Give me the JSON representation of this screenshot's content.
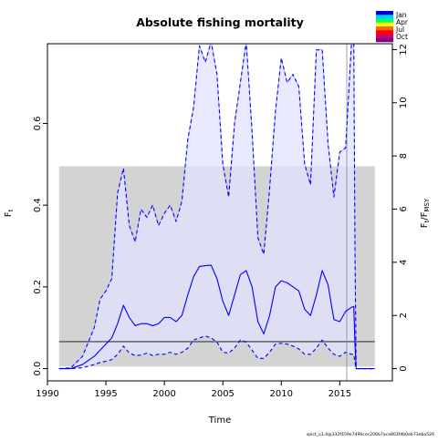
{
  "chart_data": {
    "type": "line",
    "title": "Absolute fishing mortality",
    "xlabel": "Time",
    "ylabel": "F",
    "ylabel_sub": "t",
    "ylabel_right": "F",
    "ylabel_right_sub": "t",
    "ylabel_right_den": "F",
    "ylabel_right_den_sub": "MSY",
    "xlim": [
      1990,
      2019.5
    ],
    "ylim": [
      -0.03,
      0.795
    ],
    "ylim_right": [
      -0.46,
      12.22
    ],
    "xticks": [
      1990,
      1995,
      2000,
      2005,
      2010,
      2015
    ],
    "yticks": [
      0.0,
      0.2,
      0.4,
      0.6
    ],
    "yticks_right": [
      0,
      2,
      4,
      6,
      8,
      10,
      12
    ],
    "footnote": "spict_v1.4@332f459e7d96cec206b7aca803fdb0eb73eba526",
    "legend": {
      "position": "top-right",
      "entries": [
        "Jan",
        "Apr",
        "Jul",
        "Oct"
      ],
      "gradient": [
        "#0000cc",
        "#00ccff",
        "#00ff66",
        "#ffff00",
        "#ff6600",
        "#ff0000",
        "#cc0066",
        "#800080"
      ]
    },
    "colors": {
      "band_fill": "#d3d3d3",
      "ci_fill": "#e2e2ff",
      "ci_outline": "#a8a8ff",
      "line": "#0000ff",
      "fmsy_line": "#555555",
      "vline": "#888888"
    },
    "fmsy_band": {
      "x": [
        1991,
        2018
      ],
      "y": [
        0.005,
        0.495
      ]
    },
    "fmsy_level": {
      "x": [
        1991,
        2018
      ],
      "y": 0.066
    },
    "vline_x": 2015.6,
    "series": [
      {
        "role": "estimate",
        "x": [
          1991,
          1992,
          1993,
          1994,
          1994.5,
          1995,
          1995.5,
          1996,
          1996.5,
          1997,
          1997.5,
          1998,
          1998.5,
          1999,
          1999.5,
          2000,
          2000.5,
          2001,
          2001.5,
          2002,
          2002.5,
          2003,
          2003.5,
          2004,
          2004.5,
          2005,
          2005.5,
          2006,
          2006.5,
          2007,
          2007.5,
          2008,
          2008.5,
          2009,
          2009.5,
          2010,
          2010.5,
          2011,
          2011.5,
          2012,
          2012.5,
          2013,
          2013.5,
          2014,
          2014.5,
          2015,
          2015.5,
          2016,
          2016.2,
          2016.3,
          2016.4,
          2017,
          2018
        ],
        "y": [
          0.0,
          0.0,
          0.01,
          0.03,
          0.045,
          0.06,
          0.075,
          0.11,
          0.155,
          0.125,
          0.105,
          0.11,
          0.11,
          0.105,
          0.11,
          0.125,
          0.125,
          0.115,
          0.13,
          0.18,
          0.225,
          0.25,
          0.252,
          0.253,
          0.22,
          0.165,
          0.13,
          0.18,
          0.23,
          0.24,
          0.2,
          0.115,
          0.085,
          0.13,
          0.2,
          0.215,
          0.21,
          0.2,
          0.19,
          0.145,
          0.13,
          0.18,
          0.24,
          0.205,
          0.12,
          0.115,
          0.14,
          0.15,
          0.152,
          0.06,
          0.0,
          0.0,
          0.0
        ]
      },
      {
        "role": "ci_upper",
        "x": [
          1991,
          1992,
          1993,
          1994,
          1994.5,
          1995,
          1995.5,
          1996,
          1996.5,
          1997,
          1997.5,
          1998,
          1998.5,
          1999,
          1999.5,
          2000,
          2000.5,
          2001,
          2001.5,
          2002,
          2002.5,
          2003,
          2003.5,
          2004,
          2004.5,
          2005,
          2005.5,
          2006,
          2006.5,
          2007,
          2007.5,
          2008,
          2008.5,
          2009,
          2009.5,
          2010,
          2010.5,
          2011,
          2011.5,
          2012,
          2012.5,
          2013,
          2013.5,
          2014,
          2014.5,
          2015,
          2015.5,
          2016,
          2016.2,
          2016.3,
          2016.4,
          2017,
          2018
        ],
        "y": [
          0.0,
          0.002,
          0.03,
          0.1,
          0.17,
          0.19,
          0.22,
          0.43,
          0.49,
          0.35,
          0.31,
          0.39,
          0.37,
          0.4,
          0.35,
          0.38,
          0.4,
          0.36,
          0.41,
          0.56,
          0.64,
          0.79,
          0.75,
          0.8,
          0.72,
          0.5,
          0.42,
          0.6,
          0.7,
          0.8,
          0.58,
          0.32,
          0.28,
          0.44,
          0.63,
          0.76,
          0.7,
          0.72,
          0.69,
          0.5,
          0.45,
          0.78,
          0.78,
          0.55,
          0.42,
          0.53,
          0.54,
          0.795,
          0.795,
          0.3,
          0.0,
          0.0,
          0.0
        ]
      },
      {
        "role": "ci_lower",
        "x": [
          1991,
          1992,
          1993,
          1994,
          1994.5,
          1995,
          1995.5,
          1996,
          1996.5,
          1997,
          1997.5,
          1998,
          1998.5,
          1999,
          1999.5,
          2000,
          2000.5,
          2001,
          2001.5,
          2002,
          2002.5,
          2003,
          2003.5,
          2004,
          2004.5,
          2005,
          2005.5,
          2006,
          2006.5,
          2007,
          2007.5,
          2008,
          2008.5,
          2009,
          2009.5,
          2010,
          2010.5,
          2011,
          2011.5,
          2012,
          2012.5,
          2013,
          2013.5,
          2014,
          2014.5,
          2015,
          2015.5,
          2016,
          2016.2,
          2016.3,
          2016.4,
          2017,
          2018
        ],
        "y": [
          0.0,
          0.0,
          0.002,
          0.01,
          0.015,
          0.018,
          0.022,
          0.035,
          0.055,
          0.038,
          0.032,
          0.033,
          0.038,
          0.032,
          0.035,
          0.035,
          0.04,
          0.035,
          0.04,
          0.05,
          0.07,
          0.075,
          0.08,
          0.075,
          0.065,
          0.04,
          0.038,
          0.05,
          0.07,
          0.065,
          0.045,
          0.025,
          0.025,
          0.04,
          0.06,
          0.062,
          0.06,
          0.055,
          0.048,
          0.035,
          0.035,
          0.05,
          0.07,
          0.05,
          0.035,
          0.03,
          0.04,
          0.035,
          0.035,
          0.015,
          0.0,
          0.0,
          0.0
        ]
      }
    ]
  }
}
